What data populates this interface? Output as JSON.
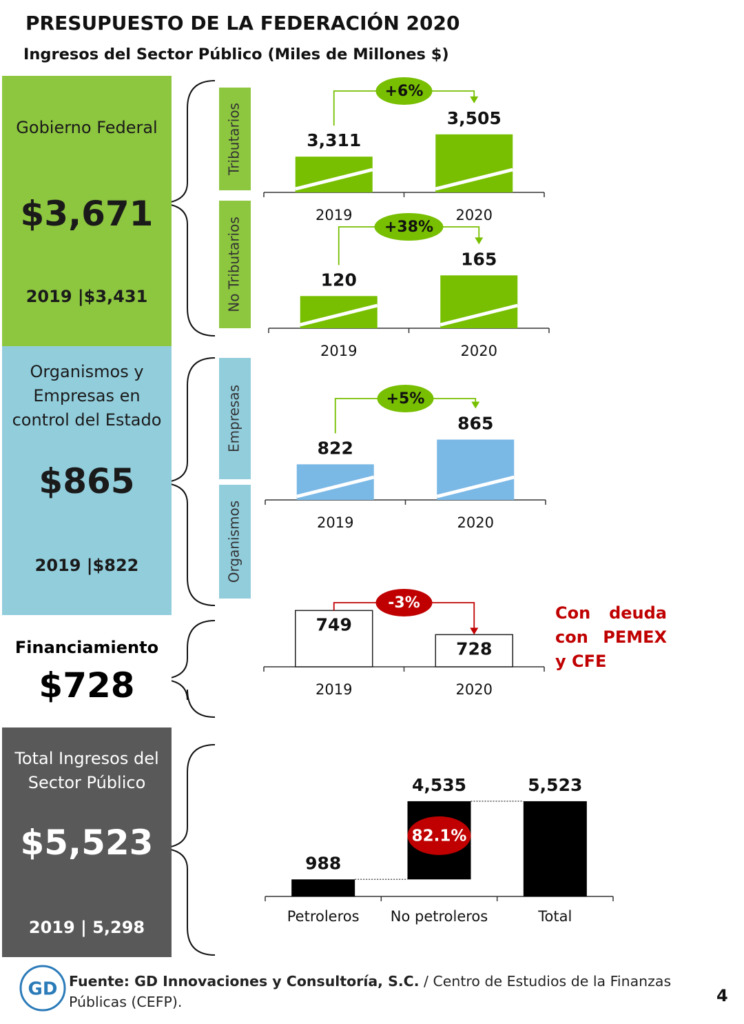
{
  "header": {
    "title": "PRESUPUESTO DE LA FEDERACIÓN 2020",
    "subtitle": "Ingresos del Sector Público (Miles de Millones $)"
  },
  "panels": [
    {
      "label": "Gobierno Federal",
      "value": "$3,671",
      "previous": "2019 |$3,431",
      "color": "#8dc63f",
      "text_color": "#1a1a1a",
      "segments": [
        "Tributarios",
        "No Tributarios"
      ]
    },
    {
      "label": "Organismos y Empresas en control del Estado",
      "value": "$865",
      "previous": "2019 |$822",
      "color": "#92cddc",
      "text_color": "#1a1a1a",
      "segments": [
        "Empresas",
        "Organismos"
      ]
    },
    {
      "label": "Financiamiento",
      "value": "$728",
      "color": "#ffffff",
      "text_color": "#000000"
    },
    {
      "label": "Total Ingresos del Sector Público",
      "value": "$5,523",
      "previous": "2019 | 5,298",
      "color": "#595959",
      "text_color": "#ffffff"
    }
  ],
  "chart_data": [
    {
      "type": "bar",
      "categories": [
        "2019",
        "2020"
      ],
      "values": [
        3311,
        3505
      ],
      "value_labels": [
        "3,311",
        "3,505"
      ],
      "ylim": [
        3000,
        3600
      ],
      "color": "#77bf00",
      "stripes": true,
      "change": "+6%",
      "change_color": "#77bf00"
    },
    {
      "type": "bar",
      "categories": [
        "2019",
        "2020"
      ],
      "values": [
        120,
        165
      ],
      "ylim": [
        50,
        200
      ],
      "color": "#77bf00",
      "stripes": true,
      "change": "+38%",
      "change_color": "#77bf00"
    },
    {
      "type": "bar",
      "categories": [
        "2019",
        "2020"
      ],
      "values": [
        822,
        865
      ],
      "ylim": [
        760,
        880
      ],
      "color": "#7ab8e6",
      "stripes": true,
      "change": "+5%",
      "change_color": "#77bf00"
    },
    {
      "type": "bar",
      "categories": [
        "2019",
        "2020"
      ],
      "values": [
        749,
        728
      ],
      "ylim": [
        700,
        760
      ],
      "color": "#ffffff",
      "edge_color": "#222222",
      "label_position": "inside",
      "change": "-3%",
      "change_color": "#c00000",
      "change_text_color": "#ffffff"
    },
    {
      "type": "waterfall",
      "categories": [
        "Petroleros",
        "No petroleros",
        "Total"
      ],
      "values": [
        988,
        4535,
        5523
      ],
      "value_labels": [
        "988",
        "4,535",
        "5,523"
      ],
      "ylim": [
        0,
        6000
      ],
      "color": "#000000",
      "annotation": "82.1%",
      "annotation_color": "#c00000"
    }
  ],
  "note": "Con deuda con PEMEX y CFE",
  "footer": {
    "logo": "GD",
    "source_bold": "Fuente: GD Innovaciones y Consultoría, S.C.",
    "source_rest": "/ Centro de Estudios de la Finanzas Públicas (CEFP).",
    "page": "4"
  }
}
